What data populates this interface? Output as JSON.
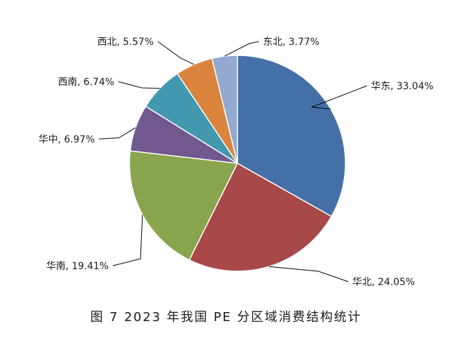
{
  "caption": "图 7  2023 年我国 PE 分区域消费结构统计",
  "chart_data": {
    "type": "pie",
    "title": "",
    "slices": [
      {
        "name": "华东",
        "value": 33.04,
        "label": "华东, 33.04%",
        "color": "#4570A7"
      },
      {
        "name": "华北",
        "value": 24.05,
        "label": "华北, 24.05%",
        "color": "#A84849"
      },
      {
        "name": "华南",
        "value": 19.41,
        "label": "华南, 19.41%",
        "color": "#89A54E"
      },
      {
        "name": "华中",
        "value": 6.97,
        "label": "华中, 6.97%",
        "color": "#71588F"
      },
      {
        "name": "西南",
        "value": 6.74,
        "label": "西南, 6.74%",
        "color": "#4198AF"
      },
      {
        "name": "西北",
        "value": 5.57,
        "label": "西北, 5.57%",
        "color": "#DB843D"
      },
      {
        "name": "东北",
        "value": 3.77,
        "label": "东北, 3.77%",
        "color": "#93A9CF"
      }
    ],
    "start_angle": "12 o'clock",
    "direction": "clockwise",
    "legend": "none"
  }
}
